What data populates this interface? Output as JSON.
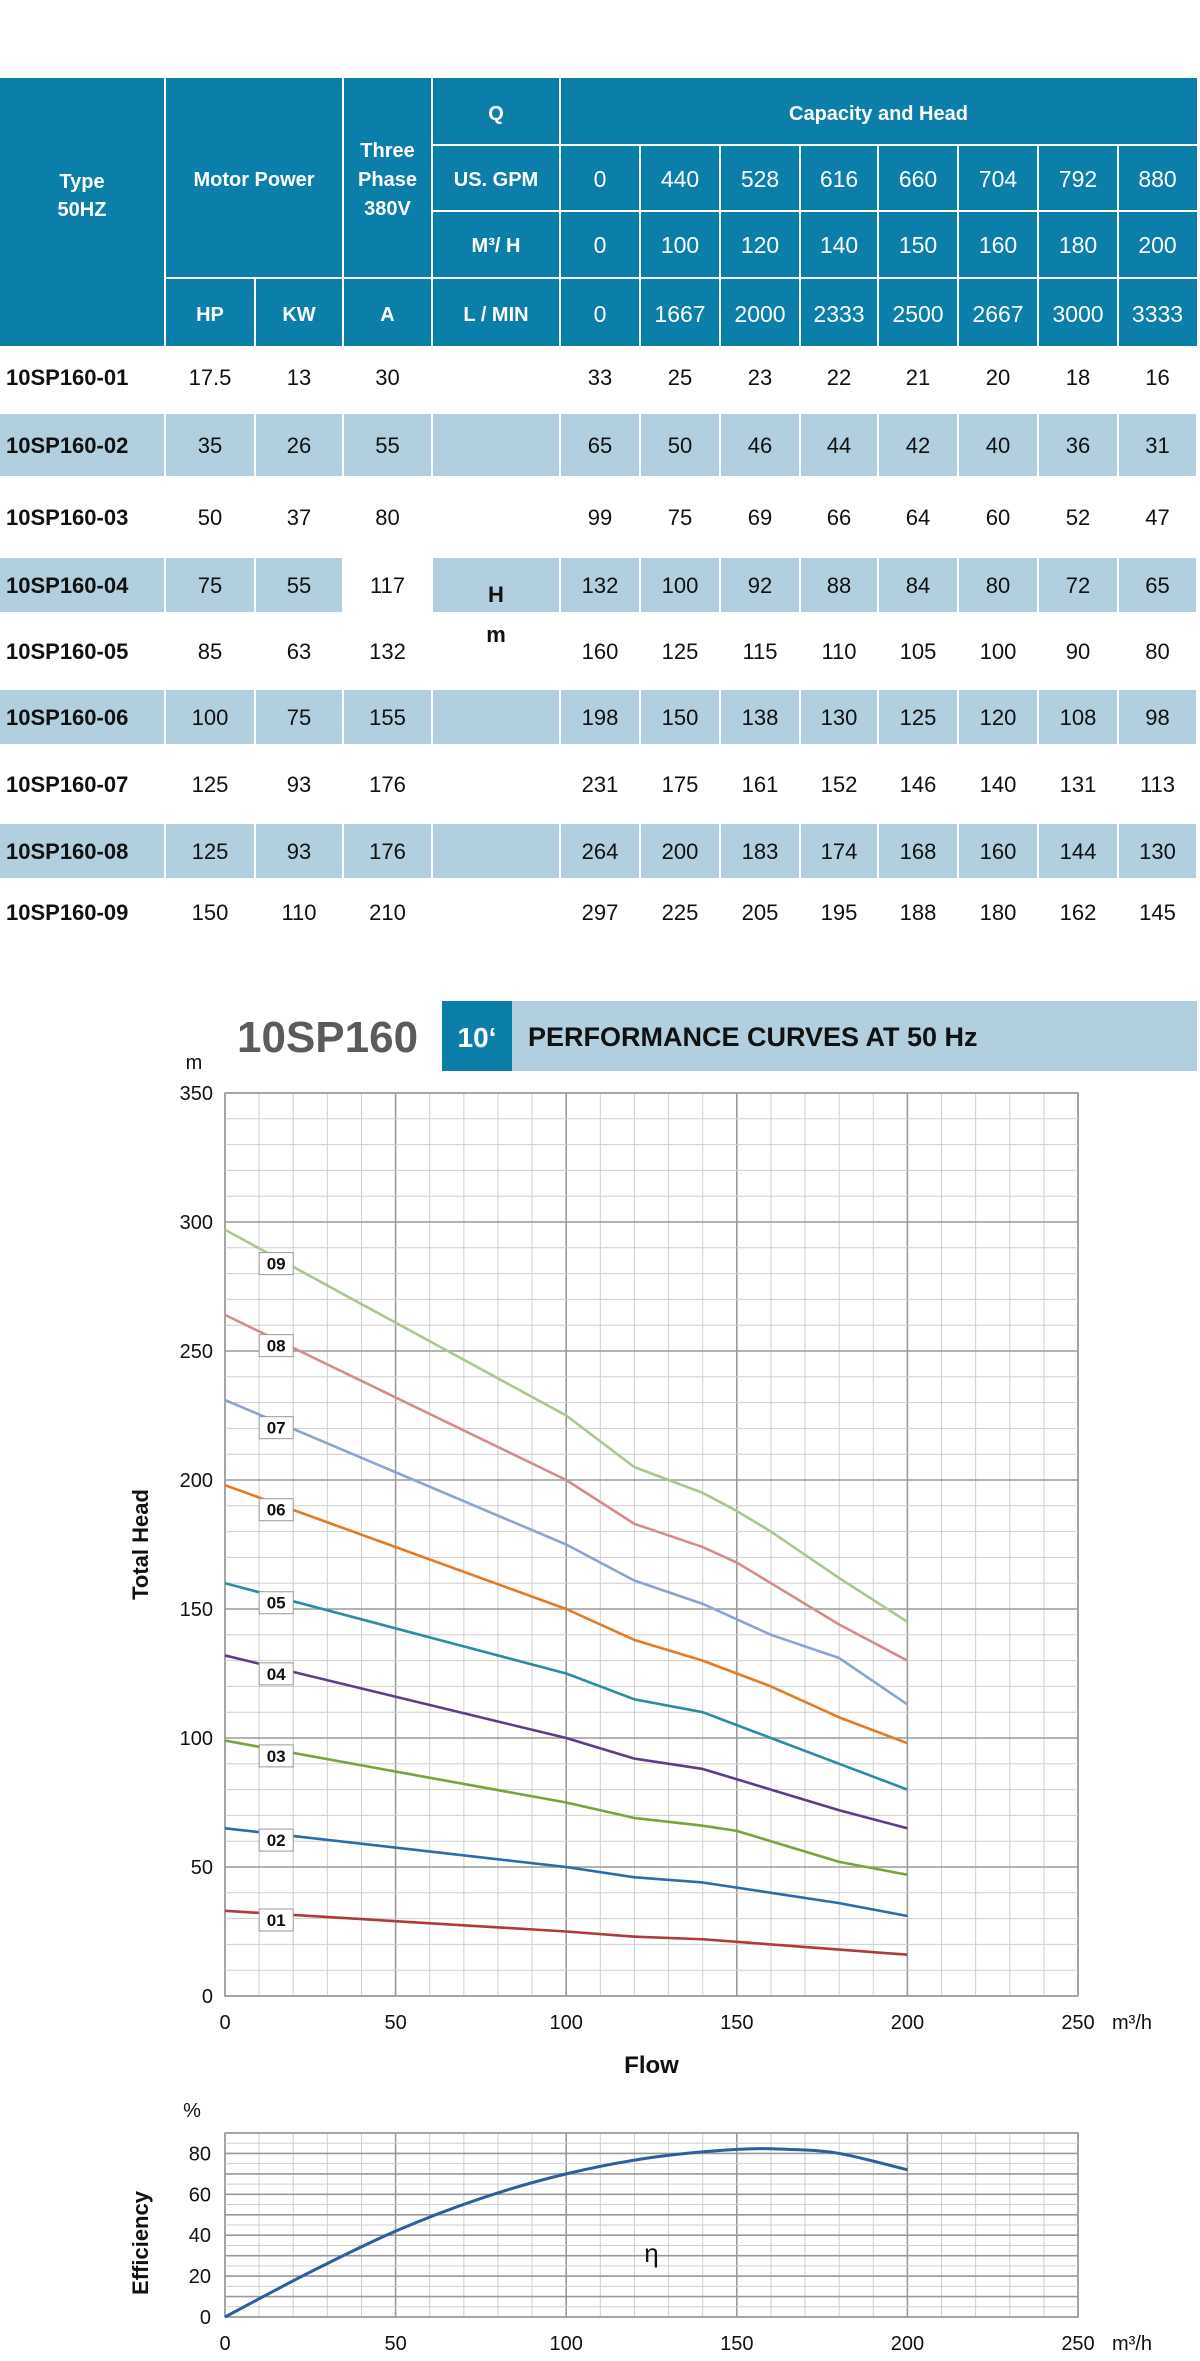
{
  "table": {
    "header": {
      "type": "Type",
      "hz": "50HZ",
      "motor_power": "Motor Power",
      "three": "Three",
      "phase": "Phase",
      "voltage": "380V",
      "q": "Q",
      "capacity_head": "Capacity and Head",
      "us_gpm": "US. GPM",
      "m3h": "M³/ H",
      "hp": "HP",
      "kw": "KW",
      "a": "A",
      "lmin": "L / MIN",
      "gpm_values": [
        "0",
        "440",
        "528",
        "616",
        "660",
        "704",
        "792",
        "880"
      ],
      "m3h_values": [
        "0",
        "100",
        "120",
        "140",
        "150",
        "160",
        "180",
        "200"
      ],
      "lmin_values": [
        "0",
        "1667",
        "2000",
        "2333",
        "2500",
        "2667",
        "3000",
        "3333"
      ]
    },
    "head_unit_symbol": "H",
    "head_unit": "m",
    "rows": [
      {
        "model": "10SP160-01",
        "hp": "17.5",
        "kw": "13",
        "a": "30",
        "heads": [
          "33",
          "25",
          "23",
          "22",
          "21",
          "20",
          "18",
          "16"
        ]
      },
      {
        "model": "10SP160-02",
        "hp": "35",
        "kw": "26",
        "a": "55",
        "heads": [
          "65",
          "50",
          "46",
          "44",
          "42",
          "40",
          "36",
          "31"
        ]
      },
      {
        "model": "10SP160-03",
        "hp": "50",
        "kw": "37",
        "a": "80",
        "heads": [
          "99",
          "75",
          "69",
          "66",
          "64",
          "60",
          "52",
          "47"
        ]
      },
      {
        "model": "10SP160-04",
        "hp": "75",
        "kw": "55",
        "a": "117",
        "heads": [
          "132",
          "100",
          "92",
          "88",
          "84",
          "80",
          "72",
          "65"
        ]
      },
      {
        "model": "10SP160-05",
        "hp": "85",
        "kw": "63",
        "a": "132",
        "heads": [
          "160",
          "125",
          "115",
          "110",
          "105",
          "100",
          "90",
          "80"
        ]
      },
      {
        "model": "10SP160-06",
        "hp": "100",
        "kw": "75",
        "a": "155",
        "heads": [
          "198",
          "150",
          "138",
          "130",
          "125",
          "120",
          "108",
          "98"
        ]
      },
      {
        "model": "10SP160-07",
        "hp": "125",
        "kw": "93",
        "a": "176",
        "heads": [
          "231",
          "175",
          "161",
          "152",
          "146",
          "140",
          "131",
          "113"
        ]
      },
      {
        "model": "10SP160-08",
        "hp": "125",
        "kw": "93",
        "a": "176",
        "heads": [
          "264",
          "200",
          "183",
          "174",
          "168",
          "160",
          "144",
          "130"
        ]
      },
      {
        "model": "10SP160-09",
        "hp": "150",
        "kw": "110",
        "a": "210",
        "heads": [
          "297",
          "225",
          "205",
          "195",
          "188",
          "180",
          "162",
          "145"
        ]
      }
    ]
  },
  "section": {
    "model": "10SP160",
    "size": "10‘",
    "title": "PERFORMANCE CURVES AT 50 Hz"
  },
  "colors": {
    "header_bg": "#0b7ea9",
    "row_alt": "#b1cfdf",
    "title_bar": "#b1cfdf",
    "grid_major": "#9a9a9a",
    "grid_minor": "#cfcfcf"
  },
  "chart_data": [
    {
      "type": "line",
      "xlabel": "Flow",
      "ylabel": "Total Head",
      "y_unit": "m",
      "x_unit": "m³/h",
      "xlim": [
        0,
        250
      ],
      "ylim": [
        0,
        350
      ],
      "x_ticks": [
        0,
        50,
        100,
        150,
        200,
        250
      ],
      "y_ticks": [
        0,
        50,
        100,
        150,
        200,
        250,
        300,
        350
      ],
      "grid": true,
      "x": [
        0,
        100,
        120,
        140,
        150,
        160,
        180,
        200
      ],
      "series": [
        {
          "name": "01",
          "color": "#b03a3a",
          "values": [
            33,
            25,
            23,
            22,
            21,
            20,
            18,
            16
          ]
        },
        {
          "name": "02",
          "color": "#2e6bab",
          "values": [
            65,
            50,
            46,
            44,
            42,
            40,
            36,
            31
          ]
        },
        {
          "name": "03",
          "color": "#79a43a",
          "values": [
            99,
            75,
            69,
            66,
            64,
            60,
            52,
            47
          ]
        },
        {
          "name": "04",
          "color": "#5e3c88",
          "values": [
            132,
            100,
            92,
            88,
            84,
            80,
            72,
            65
          ]
        },
        {
          "name": "05",
          "color": "#2b8ca2",
          "values": [
            160,
            125,
            115,
            110,
            105,
            100,
            90,
            80
          ]
        },
        {
          "name": "06",
          "color": "#e37b25",
          "values": [
            198,
            150,
            138,
            130,
            125,
            120,
            108,
            98
          ]
        },
        {
          "name": "07",
          "color": "#8aa5d2",
          "values": [
            231,
            175,
            161,
            152,
            146,
            140,
            131,
            113
          ]
        },
        {
          "name": "08",
          "color": "#d88a8a",
          "values": [
            264,
            200,
            183,
            174,
            168,
            160,
            144,
            130
          ]
        },
        {
          "name": "09",
          "color": "#a9c98b",
          "values": [
            297,
            225,
            205,
            195,
            188,
            180,
            162,
            145
          ]
        }
      ]
    },
    {
      "type": "line",
      "ylabel": "Efficiency",
      "y_unit": "%",
      "x_unit": "m³/h",
      "xlim": [
        0,
        250
      ],
      "ylim": [
        0,
        90
      ],
      "x_ticks": [
        0,
        50,
        100,
        150,
        200,
        250
      ],
      "y_ticks": [
        0,
        20,
        40,
        60,
        80
      ],
      "grid": true,
      "series": [
        {
          "name": "η",
          "color": "#2e5e9e",
          "x": [
            0,
            25,
            50,
            75,
            100,
            125,
            150,
            165,
            180,
            200
          ],
          "values": [
            0,
            22,
            42,
            58,
            70,
            78,
            82,
            82,
            80,
            72
          ]
        }
      ]
    }
  ]
}
